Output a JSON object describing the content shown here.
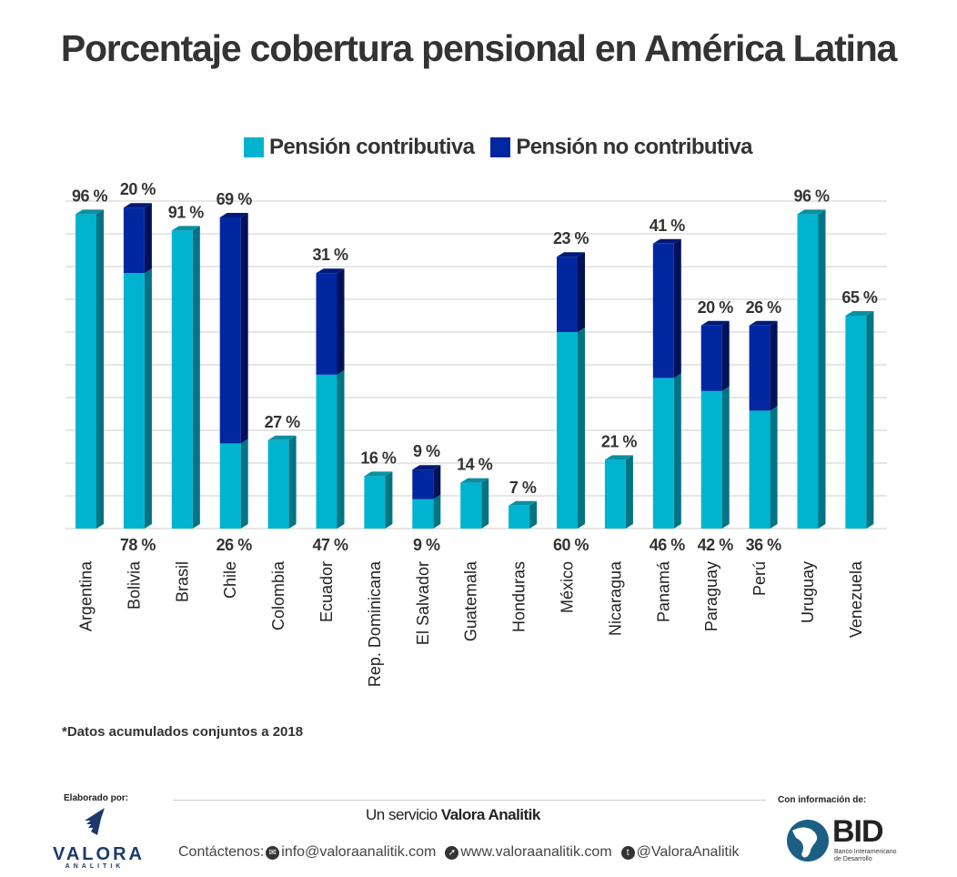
{
  "title": "Porcentaje cobertura pensional en América Latina",
  "legend": [
    {
      "label": "Pensión contributiva",
      "color": "#00b4cf"
    },
    {
      "label": "Pensión no contributiva",
      "color": "#0027a0"
    }
  ],
  "chart_data": {
    "type": "bar",
    "stacked": true,
    "title": "Porcentaje cobertura pensional en América Latina",
    "xlabel": "",
    "ylabel": "",
    "ylim": [
      0,
      100
    ],
    "grid": true,
    "legend_position": "top-center",
    "categories": [
      "Argentina",
      "Bolivia",
      "Brasil",
      "Chile",
      "Colombia",
      "Ecuador",
      "Rep. Dominicana",
      "El Salvador",
      "Guatemala",
      "Honduras",
      "México",
      "Nicaragua",
      "Panamá",
      "Paraguay",
      "Perú",
      "Uruguay",
      "Venezuela"
    ],
    "series": [
      {
        "name": "Pensión contributiva",
        "color": "#00b4cf",
        "values": [
          96,
          78,
          91,
          26,
          27,
          47,
          16,
          9,
          14,
          7,
          60,
          21,
          46,
          42,
          36,
          96,
          65
        ]
      },
      {
        "name": "Pensión no contributiva",
        "color": "#0027a0",
        "values": [
          0,
          20,
          0,
          69,
          0,
          31,
          0,
          9,
          0,
          0,
          23,
          0,
          41,
          20,
          26,
          0,
          0
        ]
      }
    ],
    "value_suffix": " %"
  },
  "footnote": "*Datos acumulados conjuntos a 2018",
  "footer": {
    "made_by_label": "Elaborado por:",
    "valora_word": "VALORA",
    "valora_sub": "ANALITIK",
    "service_prefix": "Un servicio",
    "service_brand": "Valora Analitik",
    "contact_label": "Contáctenos:",
    "email": "info@valoraanalitik.com",
    "website": "www.valoraanalitik.com",
    "twitter": "@ValoraAnalitik",
    "source_label": "Con información de:",
    "bid_word": "BID",
    "bid_sub_1": "Banco Interamericano",
    "bid_sub_2": "de Desarrollo"
  }
}
